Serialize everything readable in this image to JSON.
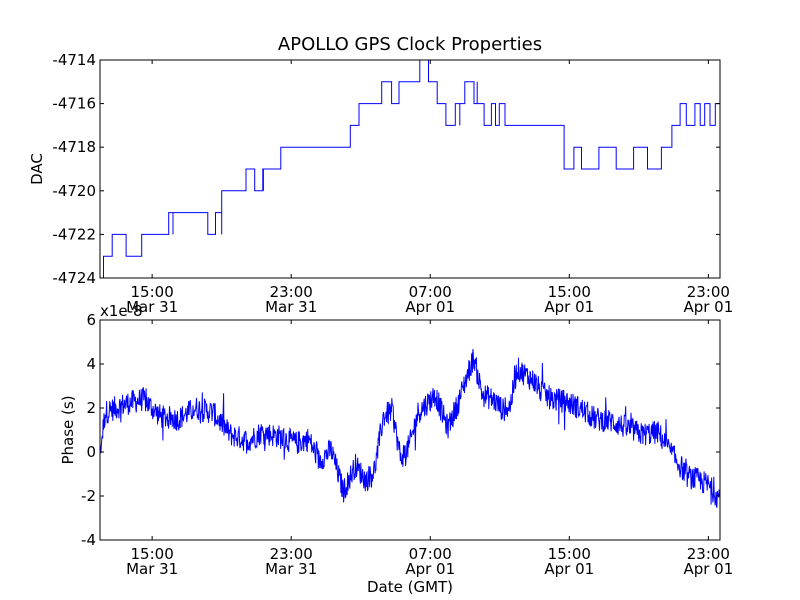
{
  "chart_data": [
    {
      "type": "line",
      "title": "APOLLO GPS Clock Properties",
      "xlabel": "",
      "ylabel": "DAC",
      "ylim": [
        -4724,
        -4714
      ],
      "yticks": [
        "-4714",
        "-4716",
        "-4718",
        "-4720",
        "-4722",
        "-4724"
      ],
      "xticks": [
        {
          "time": "15:00",
          "date": "Mar 31"
        },
        {
          "time": "23:00",
          "date": "Mar 31"
        },
        {
          "time": "07:00",
          "date": "Apr 01"
        },
        {
          "time": "15:00",
          "date": "Apr 01"
        },
        {
          "time": "23:00",
          "date": "Apr 01"
        }
      ],
      "xrange_gmt": [
        "Mar 31 12:00",
        "Apr 01 23:40"
      ],
      "grid": false,
      "line_color": "#0000ff",
      "series": [
        {
          "x_hours_since_mar31_00": [
            12.0,
            12.2,
            12.7,
            13.5,
            14.4,
            15.5,
            16.2,
            17.0,
            18.2,
            19.0,
            20.4,
            20.9,
            21.4,
            22.4,
            25.3,
            26.4,
            26.9,
            28.0,
            29.2,
            30.4,
            30.9,
            31.4,
            31.9,
            32.7,
            33.7,
            34.1,
            35.3,
            37.6,
            38.7,
            39.7,
            40.7,
            41.7,
            42.7,
            43.5,
            44.3,
            44.9,
            45.2,
            47.4
          ],
          "values": [
            -4724,
            -4723,
            -4722,
            -4723,
            -4722,
            -4721.5,
            -4721,
            -4721,
            -4721.5,
            -4720,
            -4719,
            -4719.5,
            -4719,
            -4718,
            -4718,
            -4717,
            -4716,
            -4715.5,
            -4715,
            -4714,
            -4715,
            -4716,
            -4716.5,
            -4715.5,
            -4716,
            -4716.5,
            -4717,
            -4717,
            -4718.5,
            -4719,
            -4718,
            -4719,
            -4718,
            -4719,
            -4718,
            -4717,
            -4716.5,
            -4716
          ]
        }
      ]
    },
    {
      "type": "line",
      "title": "",
      "xlabel": "Date (GMT)",
      "ylabel": "Phase (s)",
      "scale_label": "x1e-8",
      "ylim": [
        -4,
        6
      ],
      "yticks": [
        "6",
        "4",
        "2",
        "0",
        "-2",
        "-4"
      ],
      "xticks": [
        {
          "time": "15:00",
          "date": "Mar 31"
        },
        {
          "time": "23:00",
          "date": "Mar 31"
        },
        {
          "time": "07:00",
          "date": "Apr 01"
        },
        {
          "time": "15:00",
          "date": "Apr 01"
        },
        {
          "time": "23:00",
          "date": "Apr 01"
        }
      ],
      "xrange_gmt": [
        "Mar 31 12:00",
        "Apr 01 23:40"
      ],
      "grid": false,
      "line_color": "#0000ff",
      "series": [
        {
          "x_hours_since_mar31_00": [
            12.0,
            12.3,
            13.5,
            14.5,
            15.5,
            16.5,
            17.5,
            18.5,
            19.5,
            20.5,
            21.3,
            22.3,
            23.3,
            24.0,
            24.6,
            25.3,
            26.0,
            26.7,
            27.3,
            27.8,
            28.3,
            28.8,
            29.3,
            29.8,
            30.3,
            30.8,
            31.3,
            32.0,
            32.6,
            33.0,
            33.5,
            34.0,
            34.6,
            35.2,
            35.6,
            36.0,
            36.5,
            37.0,
            37.4,
            38.0,
            38.8,
            39.6,
            40.5,
            41.4,
            42.3,
            43.2,
            44.1,
            45.0,
            45.8,
            46.5,
            47.0,
            47.5
          ],
          "values": [
            0,
            1.8,
            2.2,
            2.4,
            1.6,
            1.5,
            2.0,
            1.8,
            0.8,
            0.5,
            0.9,
            0.7,
            0.4,
            0.6,
            -0.4,
            0.1,
            -1.8,
            -0.6,
            -1.3,
            -0.8,
            1.6,
            1.9,
            -0.3,
            0.3,
            1.8,
            2.2,
            2.6,
            1.1,
            2.2,
            3.2,
            4.3,
            2.6,
            2.4,
            1.9,
            2.1,
            3.8,
            3.5,
            3.2,
            2.7,
            2.4,
            2.3,
            2.0,
            1.5,
            1.4,
            1.1,
            0.8,
            0.9,
            -0.2,
            -1.1,
            -1.3,
            -1.5,
            -2.0
          ]
        }
      ]
    }
  ]
}
